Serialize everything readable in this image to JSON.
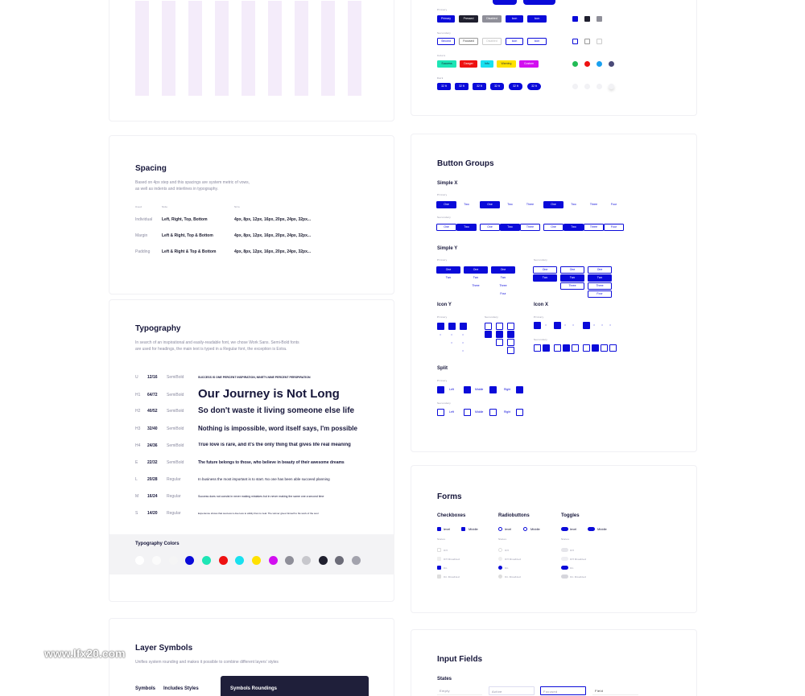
{
  "colors": {
    "accent": "#0a0ad9",
    "dark": "#1f1f2e",
    "grey": "#8f8f99",
    "success": "#1ee5b5",
    "danger": "#ee1111",
    "info": "#19e0ef",
    "warning": "#ffe100",
    "custom": "#d20ff0"
  },
  "spacing": {
    "title": "Spacing",
    "desc_line1": "Based on 4px step and this spacings are system metric of vows,",
    "desc_line2": "as well as indents and interlines in typography.",
    "headers": [
      "Used",
      "Side",
      "Size"
    ],
    "rows": [
      {
        "used": "Individual",
        "side": "Left, Right, Top, Bottom",
        "size": "4px, 8px, 12px, 16px, 20px, 24px, 32px..."
      },
      {
        "used": "Margin",
        "side": "Left & Right, Top & Bottom",
        "size": "4px, 8px, 12px, 16px, 20px, 24px, 32px..."
      },
      {
        "used": "Padding",
        "side": "Left & Right & Top & Bottom",
        "size": "4px, 8px, 12px, 16px, 20px, 24px, 32px..."
      }
    ]
  },
  "typography": {
    "title": "Typography",
    "desc_line1": "In search of an inspirational and easily-readable font, we chose Work Sans. Semi-Bold fonts",
    "desc_line2": "are used for headings, the main text is typed in a Regular font, the exception is Extra.",
    "rows": [
      {
        "code": "U",
        "size": "12/16",
        "weight": "SemiBold",
        "sample": "SUCCESS IS ONE PERCENT INSPIRATION, NINETY-NINE PERCENT PERSPIRATION"
      },
      {
        "code": "H1",
        "size": "64/72",
        "weight": "SemiBold",
        "sample": "Our Journey is Not Long"
      },
      {
        "code": "H2",
        "size": "40/52",
        "weight": "SemiBold",
        "sample": "So don't waste it living someone else life"
      },
      {
        "code": "H3",
        "size": "32/40",
        "weight": "SemiBold",
        "sample": "Nothing is impossible, word itself says, I'm possible"
      },
      {
        "code": "H4",
        "size": "24/36",
        "weight": "SemiBold",
        "sample": "True love is rare, and it's the only thing that gives life real meaning"
      },
      {
        "code": "E",
        "size": "22/32",
        "weight": "SemiBold",
        "sample": "The future belongs to those, who believe in beauty of their awesome dreams"
      },
      {
        "code": "L",
        "size": "20/28",
        "weight": "Regular",
        "sample": "In business the most important is to start. No one has been able succeed planning"
      },
      {
        "code": "M",
        "size": "16/24",
        "weight": "Regular",
        "sample": "Success does not consist in never making mistakes but in never making the same one a second time"
      },
      {
        "code": "S",
        "size": "14/20",
        "weight": "Regular",
        "sample": "Experience shows that success is due less to ability than to zeal. The winner gives himself to his work of the soul"
      }
    ],
    "colors_title": "Typography Colors",
    "palette": [
      "#ffffff",
      "#fbfbfb",
      "#f5f5f5",
      "#0a0ad9",
      "#1ee5b5",
      "#ee1111",
      "#19e0ef",
      "#ffe100",
      "#d20ff0",
      "#8f8f99",
      "#c7c7cc",
      "#1f1f2e",
      "#6c6c78",
      "#a3a3ad"
    ]
  },
  "layer_symbols": {
    "title": "Layer Symbols",
    "desc": "Unifies system rounding and makes it possible to combine different layers' styles",
    "col1": "Symbols",
    "col2": "Includes Styles",
    "dark_title": "Symbols Roundings"
  },
  "buttons_top": {
    "labels": {
      "primary": "Primary",
      "secondary": "Secondary",
      "colors": "Colors",
      "dark": "Dark"
    },
    "row1": [
      "Primary",
      "Pressed",
      "Disabled",
      "Icon",
      "Icon"
    ],
    "row2": [
      "Second",
      "Focused",
      "Disabled",
      "Icon",
      "Icon"
    ],
    "row3": [
      "Success",
      "Danger",
      "Info",
      "Warning",
      "Custom"
    ],
    "row4": [
      "32 ft",
      "32 ft",
      "32 ft",
      "32 ft",
      "32 ft"
    ]
  },
  "button_groups": {
    "title": "Button Groups",
    "simple_x": "Simple X",
    "primary": "Primary",
    "secondary": "Secondary",
    "x_primary": [
      [
        "One",
        "Two"
      ],
      [
        "One",
        "Two",
        "Three"
      ],
      [
        "One",
        "Two",
        "Three",
        "Four"
      ]
    ],
    "x_secondary": [
      [
        "One",
        "Two"
      ],
      [
        "One",
        "Two",
        "Three"
      ],
      [
        "One",
        "Two",
        "Three",
        "Four"
      ]
    ],
    "simple_y": "Simple Y",
    "y_cols": [
      [
        "One",
        "Two"
      ],
      [
        "One",
        "Two",
        "Three"
      ],
      [
        "One",
        "Two",
        "Three",
        "Four"
      ]
    ],
    "icon_y": "Icon Y",
    "icon_x": "Icon X",
    "split": "Split",
    "split_labels": [
      "Left",
      "Middle",
      "Right"
    ]
  },
  "forms": {
    "title": "Forms",
    "checkboxes": "Checkboxes",
    "radiobuttons": "Radiobuttons",
    "toggles": "Toggles",
    "level": "level",
    "middle": "Middle",
    "states": "States",
    "state_items": [
      "Off",
      "Off Disabled",
      "On",
      "On Disabled"
    ]
  },
  "inputs": {
    "title": "Input Fields",
    "states": "States",
    "fields": [
      "Empty",
      "Active",
      "Focused",
      "Field"
    ]
  },
  "watermark": "www.lfx20.com"
}
